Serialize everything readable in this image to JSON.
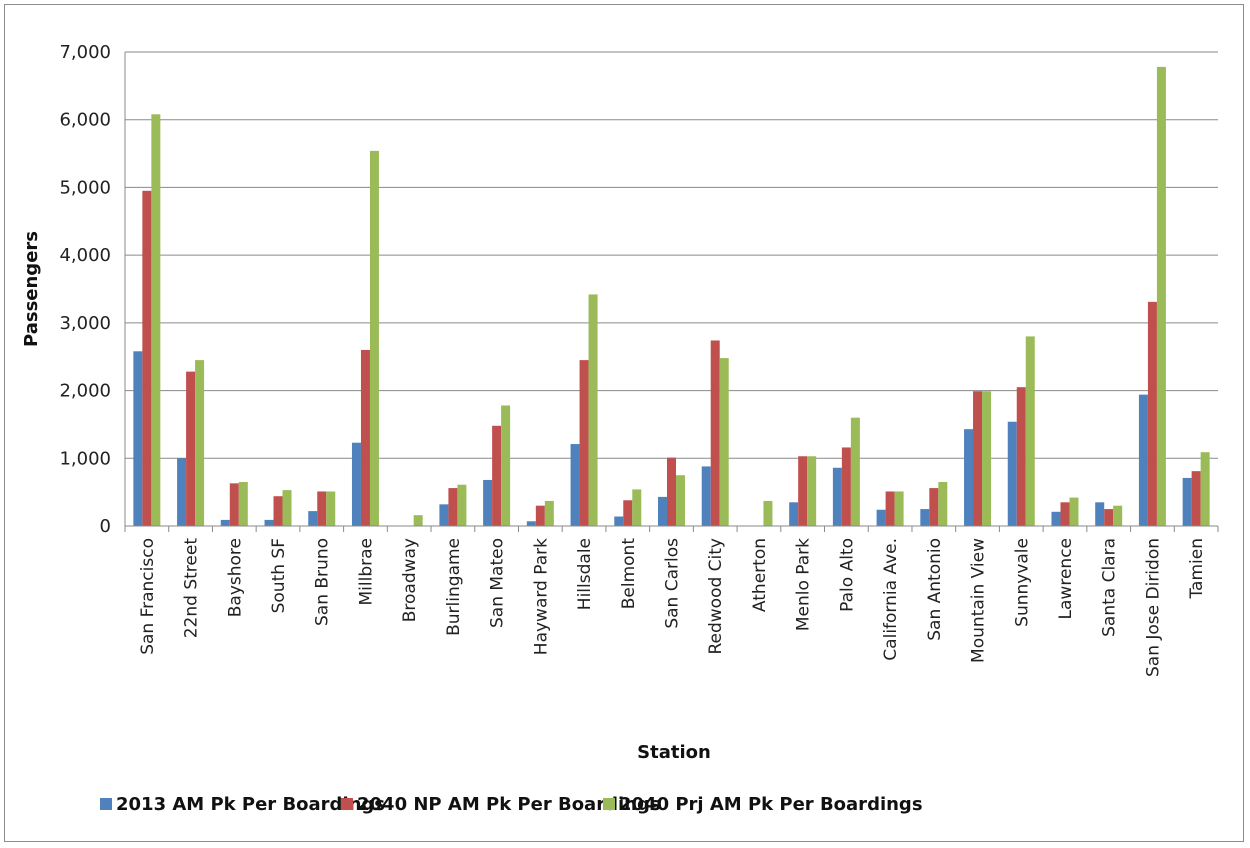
{
  "chart_data": {
    "type": "bar",
    "title": "",
    "xlabel": "Station",
    "ylabel": "Passengers",
    "ylim": [
      0,
      7000
    ],
    "yticks": [
      0,
      1000,
      2000,
      3000,
      4000,
      5000,
      6000,
      7000
    ],
    "ytick_labels": [
      "0",
      "1,000",
      "2,000",
      "3,000",
      "4,000",
      "5,000",
      "6,000",
      "7,000"
    ],
    "grid": true,
    "legend_position": "bottom",
    "categories": [
      "San Francisco",
      "22nd Street",
      "Bayshore",
      "South SF",
      "San Bruno",
      "Millbrae",
      "Broadway",
      "Burlingame",
      "San Mateo",
      "Hayward Park",
      "Hillsdale",
      "Belmont",
      "San Carlos",
      "Redwood City",
      "Atherton",
      "Menlo Park",
      "Palo Alto",
      "California Ave.",
      "San Antonio",
      "Mountain View",
      "Sunnyvale",
      "Lawrence",
      "Santa Clara",
      "San Jose Diridon",
      "Tamien"
    ],
    "series": [
      {
        "name": "2013 AM Pk Per Boardings",
        "color": "#4f81bd",
        "values": [
          2580,
          1000,
          90,
          90,
          220,
          1230,
          0,
          320,
          680,
          70,
          1210,
          140,
          430,
          880,
          0,
          350,
          860,
          240,
          250,
          1430,
          1540,
          210,
          350,
          1940,
          710
        ]
      },
      {
        "name": "2040 NP AM Pk Per Boardings",
        "color": "#c0504d",
        "values": [
          4950,
          2280,
          630,
          440,
          510,
          2600,
          0,
          560,
          1480,
          300,
          2450,
          380,
          1010,
          2740,
          0,
          1030,
          1160,
          510,
          560,
          1990,
          2050,
          350,
          250,
          3310,
          810
        ]
      },
      {
        "name": "2040 Prj AM Pk Per Boardings",
        "color": "#9bbb59",
        "values": [
          6080,
          2450,
          650,
          530,
          510,
          5540,
          160,
          610,
          1780,
          370,
          3420,
          540,
          750,
          2480,
          370,
          1030,
          1600,
          510,
          650,
          1990,
          2800,
          420,
          300,
          6780,
          1090
        ]
      }
    ]
  }
}
